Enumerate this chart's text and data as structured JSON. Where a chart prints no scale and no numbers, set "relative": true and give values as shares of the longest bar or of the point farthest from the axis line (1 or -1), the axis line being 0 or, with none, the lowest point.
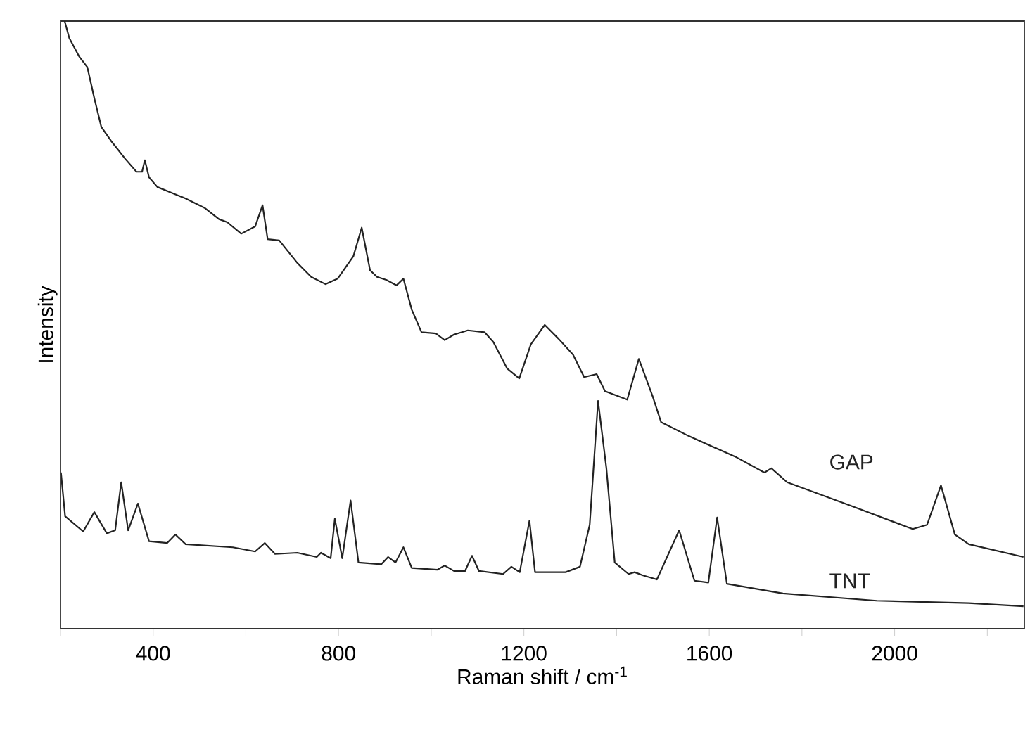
{
  "chart_data": {
    "type": "line",
    "relative": true,
    "xlabel": "Raman shift / cm$^{-1}$",
    "ylabel": "Intensity",
    "xlim": [
      200,
      2280
    ],
    "xticks": [
      {
        "value": 200,
        "label": null
      },
      400,
      {
        "value": 600,
        "label": null
      },
      800,
      {
        "value": 1000,
        "label": null
      },
      1200,
      {
        "value": 1400,
        "label": null
      },
      1600,
      {
        "value": 1800,
        "label": null
      },
      2000,
      {
        "value": 2200,
        "label": null
      }
    ],
    "grid": false,
    "legend": false,
    "marker": "none",
    "line_style": "solid",
    "series": [
      {
        "name": "GAP",
        "color": "#222222",
        "x": [
          209,
          219,
          240,
          258,
          273,
          288,
          309,
          340,
          364,
          376,
          382,
          391,
          409,
          470,
          512,
          542,
          560,
          590,
          620,
          636,
          647,
          672,
          711,
          741,
          772,
          798,
          832,
          850,
          868,
          883,
          903,
          925,
          940,
          958,
          979,
          1010,
          1029,
          1049,
          1079,
          1115,
          1134,
          1164,
          1190,
          1215,
          1245,
          1275,
          1306,
          1330,
          1357,
          1375,
          1423,
          1448,
          1478,
          1496,
          1556,
          1659,
          1719,
          1734,
          1768,
          1910,
          2039,
          2070,
          2100,
          2130,
          2160,
          2278
        ],
        "values": [
          1.0,
          0.972,
          0.942,
          0.924,
          0.873,
          0.826,
          0.803,
          0.773,
          0.752,
          0.752,
          0.771,
          0.743,
          0.727,
          0.708,
          0.692,
          0.674,
          0.669,
          0.65,
          0.662,
          0.697,
          0.641,
          0.639,
          0.602,
          0.579,
          0.567,
          0.576,
          0.613,
          0.66,
          0.59,
          0.579,
          0.574,
          0.565,
          0.576,
          0.525,
          0.488,
          0.486,
          0.475,
          0.484,
          0.491,
          0.488,
          0.472,
          0.428,
          0.412,
          0.468,
          0.5,
          0.477,
          0.451,
          0.414,
          0.419,
          0.391,
          0.377,
          0.444,
          0.382,
          0.34,
          0.317,
          0.282,
          0.257,
          0.264,
          0.241,
          0.201,
          0.164,
          0.171,
          0.236,
          0.155,
          0.139,
          0.118
        ]
      },
      {
        "name": "TNT",
        "color": "#222222",
        "x": [
          201,
          210,
          249,
          273,
          300,
          318,
          331,
          346,
          367,
          391,
          430,
          448,
          470,
          572,
          620,
          641,
          663,
          711,
          753,
          762,
          783,
          792,
          808,
          826,
          843,
          892,
          907,
          923,
          940,
          958,
          1013,
          1029,
          1049,
          1073,
          1088,
          1103,
          1155,
          1173,
          1191,
          1212,
          1224,
          1290,
          1321,
          1342,
          1360,
          1378,
          1396,
          1426,
          1439,
          1456,
          1487,
          1535,
          1568,
          1598,
          1617,
          1638,
          1759,
          1961,
          2160,
          2278
        ],
        "values": [
          0.257,
          0.185,
          0.16,
          0.192,
          0.157,
          0.162,
          0.241,
          0.162,
          0.206,
          0.144,
          0.141,
          0.155,
          0.139,
          0.134,
          0.127,
          0.141,
          0.123,
          0.125,
          0.118,
          0.125,
          0.116,
          0.181,
          0.116,
          0.211,
          0.109,
          0.106,
          0.118,
          0.109,
          0.134,
          0.1,
          0.097,
          0.104,
          0.095,
          0.095,
          0.12,
          0.095,
          0.09,
          0.102,
          0.093,
          0.178,
          0.093,
          0.093,
          0.102,
          0.171,
          0.375,
          0.264,
          0.109,
          0.09,
          0.093,
          0.088,
          0.081,
          0.162,
          0.079,
          0.076,
          0.183,
          0.074,
          0.058,
          0.046,
          0.042,
          0.037
        ]
      }
    ]
  }
}
